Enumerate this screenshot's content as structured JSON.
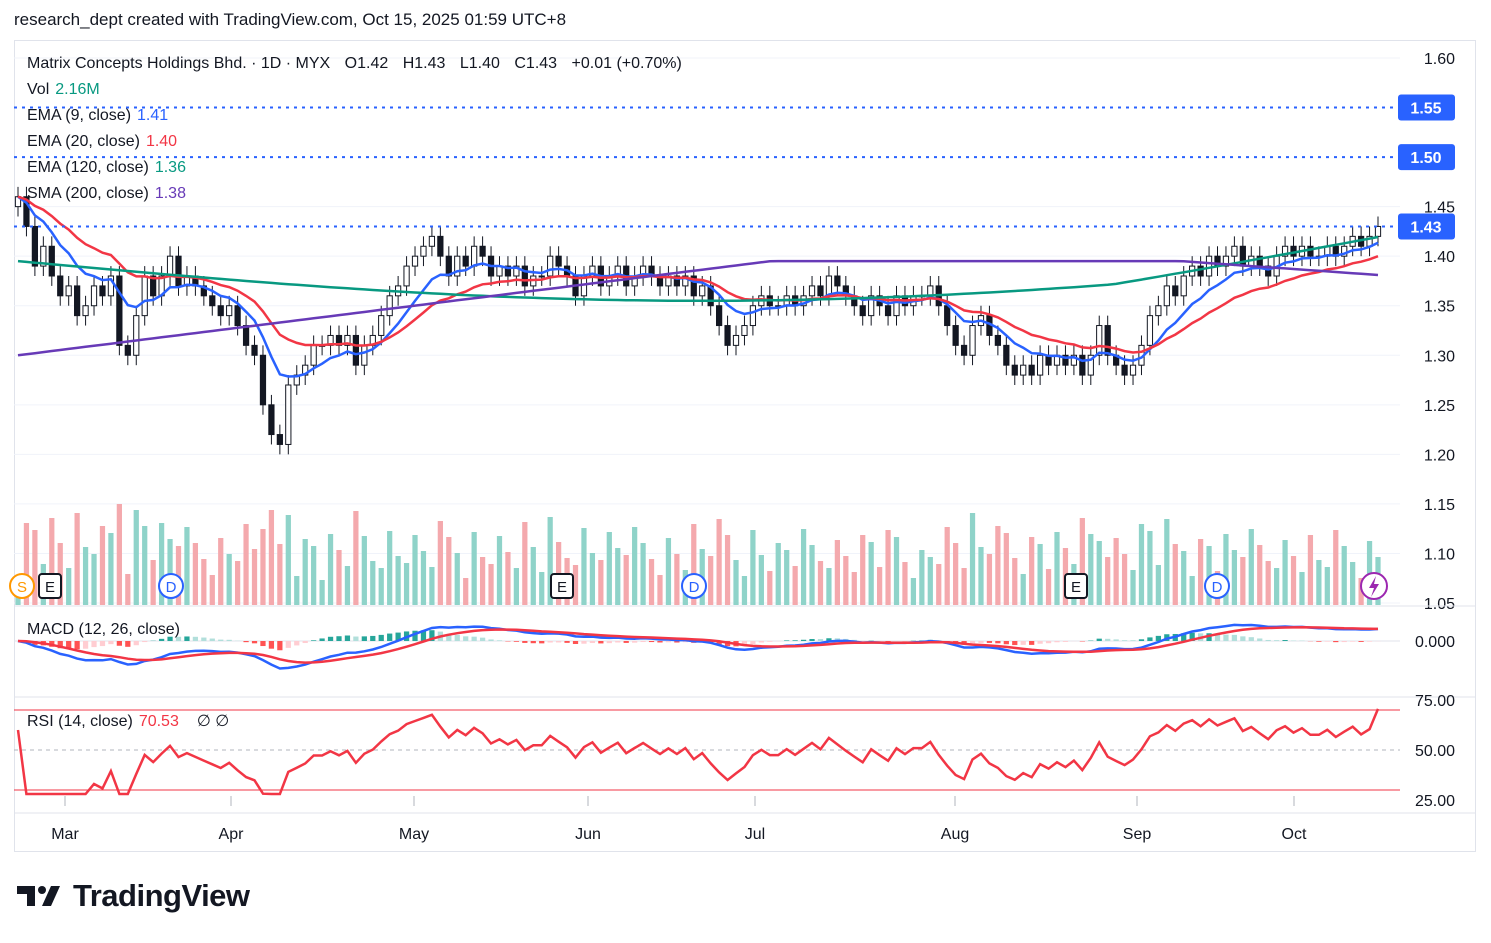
{
  "header": {
    "text": "research_dept created with TradingView.com, Oct 15, 2025 01:59 UTC+8"
  },
  "legend": {
    "symbol": "Matrix Concepts Holdings Bhd. · 1D · MYX",
    "o": "O1.42",
    "h": "H1.43",
    "l": "L1.40",
    "c": "C1.43",
    "chg": "+0.01 (+0.70%)",
    "vol_label": "Vol",
    "vol_value": "2.16M",
    "ema9_label": "EMA (9, close)",
    "ema9_value": "1.41",
    "ema20_label": "EMA (20, close)",
    "ema20_value": "1.40",
    "ema120_label": "EMA (120, close)",
    "ema120_value": "1.36",
    "sma200_label": "SMA (200, close)",
    "sma200_value": "1.38",
    "macd_label": "MACD (12, 26, close)",
    "rsi_label": "RSI (14, close)",
    "rsi_value": "70.53",
    "rsi_extra": "∅ ∅"
  },
  "colors": {
    "up": "#ffffff",
    "down": "#131722",
    "wick": "#131722",
    "ema9": "#2962ff",
    "ema20": "#f23645",
    "ema120": "#089981",
    "sma200": "#673ab7",
    "vol_up": "#8fd3c9",
    "vol_down": "#f4a9ad",
    "level": "#2962ff",
    "rsi": "#f23645",
    "macd": "#2962ff",
    "signal": "#f23645"
  },
  "price_axis": {
    "min": 1.05,
    "max": 1.6,
    "ticks": [
      "1.60",
      "1.45",
      "1.40",
      "1.35",
      "1.30",
      "1.25",
      "1.20",
      "1.15",
      "1.10",
      "1.05"
    ]
  },
  "levels": [
    {
      "value": 1.55,
      "label": "1.55"
    },
    {
      "value": 1.5,
      "label": "1.50"
    },
    {
      "value": 1.43,
      "label": "1.43"
    }
  ],
  "macd_axis": {
    "ticks": [
      "0.000"
    ]
  },
  "rsi_axis": {
    "ticks": [
      "75.00",
      "50.00",
      "25.00"
    ],
    "upper": 70,
    "mid": 50,
    "lower": 30
  },
  "time_axis": {
    "labels": [
      "Mar",
      "Apr",
      "May",
      "Jun",
      "Jul",
      "Aug",
      "Sep",
      "Oct"
    ]
  },
  "events": [
    {
      "type": "S",
      "label": "S"
    },
    {
      "type": "E",
      "label": "E"
    },
    {
      "type": "D",
      "label": "D"
    },
    {
      "type": "E",
      "label": "E"
    },
    {
      "type": "D",
      "label": "D"
    },
    {
      "type": "E",
      "label": "E"
    },
    {
      "type": "D",
      "label": "D"
    }
  ],
  "footer": {
    "brand": "TradingView"
  },
  "chart_data": {
    "type": "candlestick",
    "title": "Matrix Concepts Holdings Bhd. · 1D · MYX",
    "x": [
      "Mar",
      "Apr",
      "May",
      "Jun",
      "Jul",
      "Aug",
      "Sep",
      "Oct"
    ],
    "ylim": [
      1.05,
      1.6
    ],
    "last": {
      "open": 1.42,
      "high": 1.43,
      "low": 1.4,
      "close": 1.43,
      "change": 0.01,
      "change_pct": 0.7,
      "volume": "2.16M"
    },
    "series": [
      {
        "name": "EMA (9, close)",
        "last": 1.41
      },
      {
        "name": "EMA (20, close)",
        "last": 1.4
      },
      {
        "name": "EMA (120, close)",
        "last": 1.36
      },
      {
        "name": "SMA (200, close)",
        "last": 1.38
      }
    ],
    "closes": [
      1.46,
      1.43,
      1.39,
      1.41,
      1.38,
      1.36,
      1.37,
      1.34,
      1.35,
      1.37,
      1.36,
      1.38,
      1.31,
      1.3,
      1.34,
      1.38,
      1.36,
      1.38,
      1.4,
      1.37,
      1.38,
      1.37,
      1.36,
      1.35,
      1.34,
      1.35,
      1.33,
      1.31,
      1.3,
      1.25,
      1.22,
      1.21,
      1.27,
      1.28,
      1.29,
      1.31,
      1.31,
      1.32,
      1.31,
      1.32,
      1.29,
      1.31,
      1.32,
      1.34,
      1.36,
      1.37,
      1.39,
      1.4,
      1.41,
      1.42,
      1.4,
      1.38,
      1.4,
      1.39,
      1.41,
      1.4,
      1.38,
      1.39,
      1.38,
      1.39,
      1.37,
      1.38,
      1.38,
      1.4,
      1.39,
      1.38,
      1.36,
      1.38,
      1.39,
      1.37,
      1.38,
      1.39,
      1.37,
      1.38,
      1.39,
      1.38,
      1.37,
      1.38,
      1.37,
      1.38,
      1.36,
      1.37,
      1.35,
      1.33,
      1.31,
      1.32,
      1.33,
      1.35,
      1.36,
      1.35,
      1.35,
      1.36,
      1.35,
      1.36,
      1.37,
      1.36,
      1.38,
      1.37,
      1.36,
      1.35,
      1.34,
      1.36,
      1.35,
      1.34,
      1.36,
      1.35,
      1.36,
      1.36,
      1.37,
      1.35,
      1.33,
      1.31,
      1.3,
      1.33,
      1.34,
      1.32,
      1.31,
      1.29,
      1.28,
      1.29,
      1.28,
      1.3,
      1.29,
      1.3,
      1.29,
      1.3,
      1.28,
      1.3,
      1.33,
      1.3,
      1.29,
      1.28,
      1.29,
      1.31,
      1.34,
      1.35,
      1.37,
      1.36,
      1.38,
      1.39,
      1.38,
      1.4,
      1.39,
      1.4,
      1.41,
      1.39,
      1.4,
      1.39,
      1.38,
      1.4,
      1.41,
      1.4,
      1.41,
      1.4,
      1.4,
      1.41,
      1.4,
      1.41,
      1.42,
      1.41,
      1.42,
      1.43
    ],
    "rsi_last": 70.53
  }
}
